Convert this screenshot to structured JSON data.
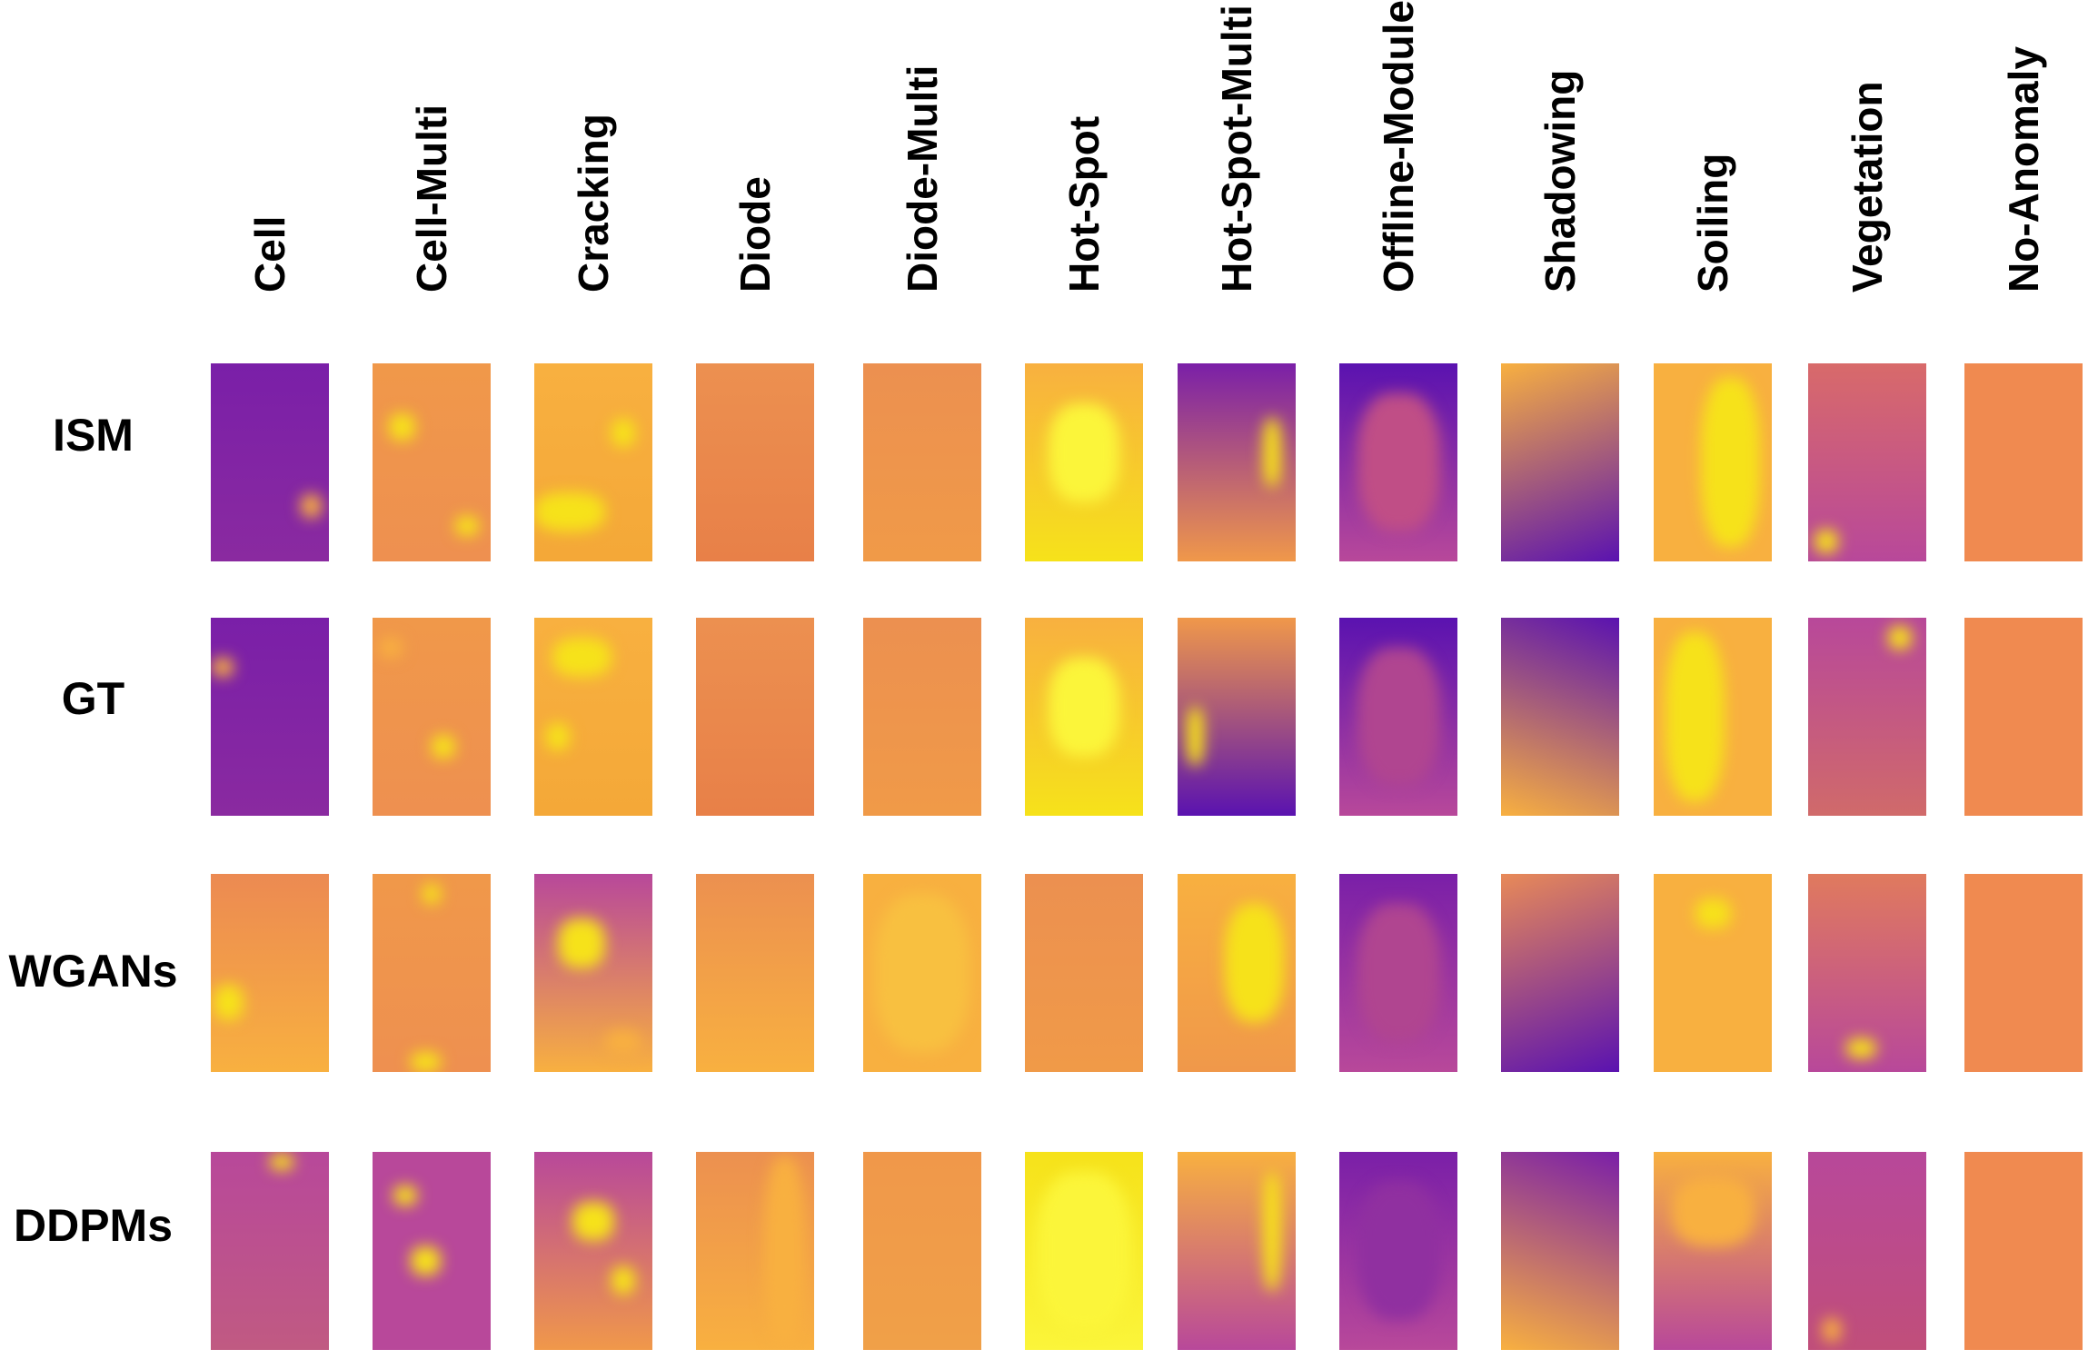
{
  "columns": [
    "Cell",
    "Cell-Multi",
    "Cracking",
    "Diode",
    "Diode-Multi",
    "Hot-Spot",
    "Hot-Spot-Multi",
    "Offline-Module",
    "Shadowing",
    "Soiling",
    "Vegetation",
    "No-Anomaly"
  ],
  "rows": [
    "ISM",
    "GT",
    "WGANs",
    "DDPMs"
  ],
  "colors": {
    "violet": "#7a1fa8",
    "deep": "#5a12b0",
    "magenta": "#b8489a",
    "orange": "#f0984a",
    "amber": "#f8b040",
    "yellow": "#f6e21a",
    "bright": "#fbf53a"
  }
}
